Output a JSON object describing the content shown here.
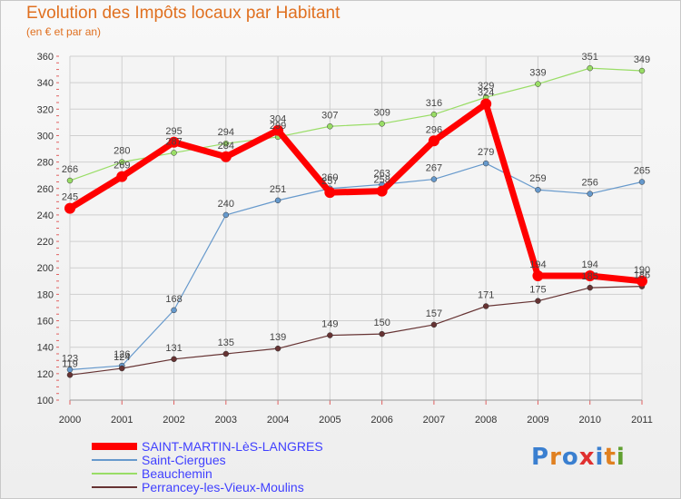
{
  "title": "Evolution des Impôts locaux par Habitant",
  "subtitle": "(en € et par an)",
  "logo": {
    "text": "Proxiti"
  },
  "chart_data": {
    "type": "line",
    "title": "Evolution des Impôts locaux par Habitant",
    "subtitle": "(en € et par an)",
    "xlabel": "",
    "ylabel": "",
    "x": [
      "2000",
      "2001",
      "2002",
      "2003",
      "2004",
      "2005",
      "2006",
      "2007",
      "2008",
      "2009",
      "2010",
      "2011"
    ],
    "ylim": [
      100,
      360
    ],
    "yticks": [
      100,
      120,
      140,
      160,
      180,
      200,
      220,
      240,
      260,
      280,
      300,
      320,
      340,
      360
    ],
    "grid": true,
    "legend_position": "bottom-left",
    "series": [
      {
        "name": "SAINT-MARTIN-LèS-LANGRES",
        "color": "#ff0000",
        "values": [
          245,
          269,
          295,
          284,
          304,
          257,
          258,
          296,
          324,
          194,
          194,
          190
        ]
      },
      {
        "name": "Saint-Ciergues",
        "color": "#6699cc",
        "values": [
          123,
          126,
          168,
          240,
          251,
          260,
          263,
          267,
          279,
          259,
          256,
          265
        ]
      },
      {
        "name": "Beauchemin",
        "color": "#99dd66",
        "values": [
          266,
          280,
          287,
          294,
          299,
          307,
          309,
          316,
          329,
          339,
          351,
          349
        ]
      },
      {
        "name": "Perrancey-les-Vieux-Moulins",
        "color": "#663333",
        "values": [
          119,
          124,
          131,
          135,
          139,
          149,
          150,
          157,
          171,
          175,
          185,
          186
        ]
      }
    ]
  }
}
